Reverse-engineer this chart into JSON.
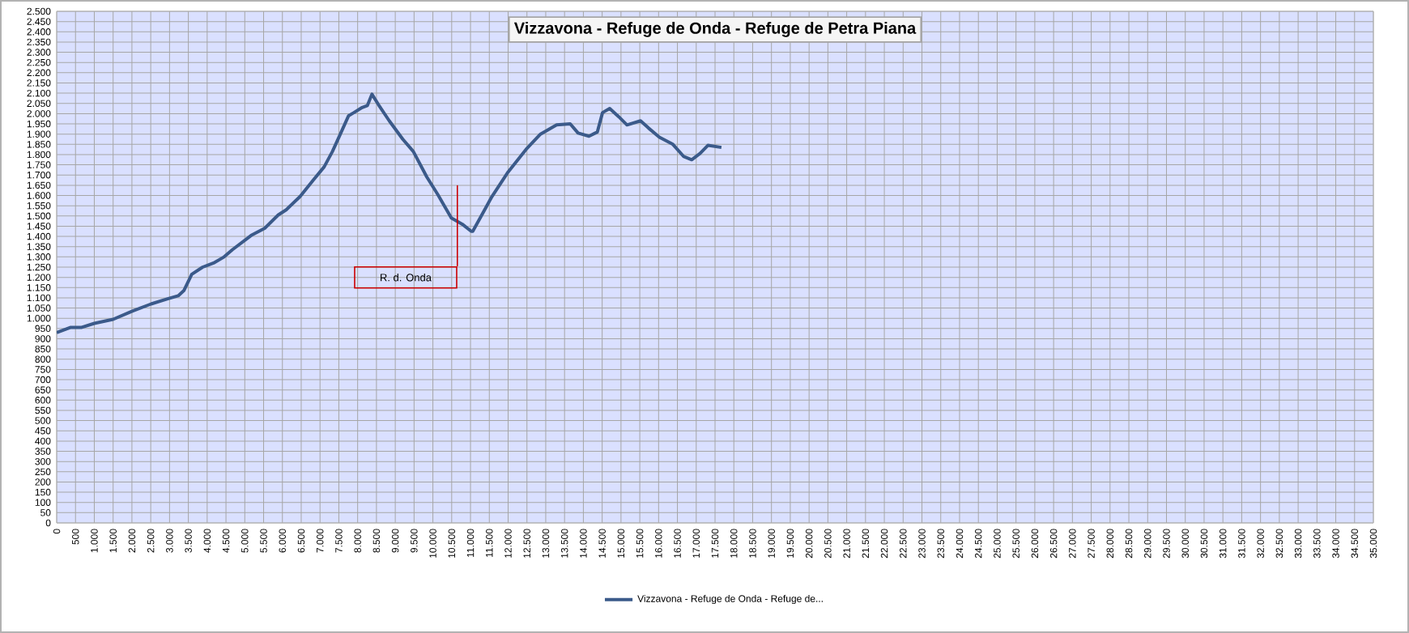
{
  "chart_data": {
    "type": "line",
    "title": "Vizzavona - Refuge de Onda - Refuge de Petra Piana",
    "series": [
      {
        "name": "Vizzavona - Refuge de Onda - Refuge de...",
        "color": "#3b5a8a",
        "x": [
          0,
          360,
          650,
          1000,
          1500,
          2010,
          2510,
          2950,
          3230,
          3380,
          3590,
          3880,
          4170,
          4450,
          4670,
          5170,
          5530,
          5890,
          6100,
          6470,
          6820,
          7110,
          7330,
          7540,
          7760,
          7900,
          8120,
          8260,
          8380,
          8550,
          8840,
          9200,
          9480,
          9840,
          10130,
          10490,
          10780,
          11020,
          11060,
          11420,
          11570,
          12000,
          12500,
          12860,
          13290,
          13650,
          13860,
          14150,
          14370,
          14510,
          14700,
          14940,
          15160,
          15520,
          15730,
          16020,
          16380,
          16670,
          16880,
          17100,
          17310,
          17670
        ],
        "values": [
          930,
          955,
          955,
          975,
          995,
          1035,
          1070,
          1095,
          1110,
          1135,
          1215,
          1250,
          1270,
          1300,
          1335,
          1405,
          1440,
          1505,
          1530,
          1595,
          1675,
          1740,
          1815,
          1900,
          1990,
          2005,
          2030,
          2040,
          2095,
          2045,
          1965,
          1875,
          1815,
          1690,
          1605,
          1490,
          1460,
          1425,
          1425,
          1545,
          1595,
          1715,
          1830,
          1900,
          1945,
          1950,
          1905,
          1890,
          1910,
          2005,
          2025,
          1985,
          1945,
          1965,
          1930,
          1885,
          1850,
          1790,
          1775,
          1805,
          1845,
          1835
        ]
      }
    ],
    "xlim": [
      0,
      35000
    ],
    "ylim": [
      0,
      2500
    ],
    "xticks": [
      0,
      500,
      {
        "value": 1000,
        "label": "1.000"
      },
      {
        "value": 1500,
        "label": "1.500"
      },
      {
        "value": 2000,
        "label": "2.000"
      },
      {
        "value": 2500,
        "label": "2.500"
      },
      {
        "value": 3000,
        "label": "3.000"
      },
      {
        "value": 3500,
        "label": "3.500"
      },
      {
        "value": 4000,
        "label": "4.000"
      },
      {
        "value": 4500,
        "label": "4.500"
      },
      {
        "value": 5000,
        "label": "5.000"
      },
      {
        "value": 5500,
        "label": "5.500"
      },
      {
        "value": 6000,
        "label": "6.000"
      },
      {
        "value": 6500,
        "label": "6.500"
      },
      {
        "value": 7000,
        "label": "7.000"
      },
      {
        "value": 7500,
        "label": "7.500"
      },
      {
        "value": 8000,
        "label": "8.000"
      },
      {
        "value": 8500,
        "label": "8.500"
      },
      {
        "value": 9000,
        "label": "9.000"
      },
      {
        "value": 9500,
        "label": "9.500"
      },
      {
        "value": 10000,
        "label": "10.000"
      },
      {
        "value": 10500,
        "label": "10.500"
      },
      {
        "value": 11000,
        "label": "11.000"
      },
      {
        "value": 11500,
        "label": "11.500"
      },
      {
        "value": 12000,
        "label": "12.000"
      },
      {
        "value": 12500,
        "label": "12.500"
      },
      {
        "value": 13000,
        "label": "13.000"
      },
      {
        "value": 13500,
        "label": "13.500"
      },
      {
        "value": 14000,
        "label": "14.000"
      },
      {
        "value": 14500,
        "label": "14.500"
      },
      {
        "value": 15000,
        "label": "15.000"
      },
      {
        "value": 15500,
        "label": "15.500"
      },
      {
        "value": 16000,
        "label": "16.000"
      },
      {
        "value": 16500,
        "label": "16.500"
      },
      {
        "value": 17000,
        "label": "17.000"
      },
      {
        "value": 17500,
        "label": "17.500"
      },
      {
        "value": 18000,
        "label": "18.000"
      },
      {
        "value": 18500,
        "label": "18.500"
      },
      {
        "value": 19000,
        "label": "19.000"
      },
      {
        "value": 19500,
        "label": "19.500"
      },
      {
        "value": 20000,
        "label": "20.000"
      },
      {
        "value": 20500,
        "label": "20.500"
      },
      {
        "value": 21000,
        "label": "21.000"
      },
      {
        "value": 21500,
        "label": "21.500"
      },
      {
        "value": 22000,
        "label": "22.000"
      },
      {
        "value": 22500,
        "label": "22.500"
      },
      {
        "value": 23000,
        "label": "23.000"
      },
      {
        "value": 23500,
        "label": "23.500"
      },
      {
        "value": 24000,
        "label": "24.000"
      },
      {
        "value": 24500,
        "label": "24.500"
      },
      {
        "value": 25000,
        "label": "25.000"
      },
      {
        "value": 25500,
        "label": "25.500"
      },
      {
        "value": 26000,
        "label": "26.000"
      },
      {
        "value": 26500,
        "label": "26.500"
      },
      {
        "value": 27000,
        "label": "27.000"
      },
      {
        "value": 27500,
        "label": "27.500"
      },
      {
        "value": 28000,
        "label": "28.000"
      },
      {
        "value": 28500,
        "label": "28.500"
      },
      {
        "value": 29000,
        "label": "29.000"
      },
      {
        "value": 29500,
        "label": "29.500"
      },
      {
        "value": 30000,
        "label": "30.000"
      },
      {
        "value": 30500,
        "label": "30.500"
      },
      {
        "value": 31000,
        "label": "31.000"
      },
      {
        "value": 31500,
        "label": "31.500"
      },
      {
        "value": 32000,
        "label": "32.000"
      },
      {
        "value": 32500,
        "label": "32.500"
      },
      {
        "value": 33000,
        "label": "33.000"
      },
      {
        "value": 33500,
        "label": "33.500"
      },
      {
        "value": 34000,
        "label": "34.000"
      },
      {
        "value": 34500,
        "label": "34.500"
      },
      {
        "value": 35000,
        "label": "35.000"
      }
    ],
    "yticks": [
      0,
      50,
      100,
      150,
      200,
      250,
      300,
      350,
      400,
      450,
      500,
      550,
      600,
      650,
      700,
      750,
      800,
      850,
      900,
      950,
      {
        "value": 1000,
        "label": "1.000"
      },
      {
        "value": 1050,
        "label": "1.050"
      },
      {
        "value": 1100,
        "label": "1.100"
      },
      {
        "value": 1150,
        "label": "1.150"
      },
      {
        "value": 1200,
        "label": "1.200"
      },
      {
        "value": 1250,
        "label": "1.250"
      },
      {
        "value": 1300,
        "label": "1.300"
      },
      {
        "value": 1350,
        "label": "1.350"
      },
      {
        "value": 1400,
        "label": "1.400"
      },
      {
        "value": 1450,
        "label": "1.450"
      },
      {
        "value": 1500,
        "label": "1.500"
      },
      {
        "value": 1550,
        "label": "1.550"
      },
      {
        "value": 1600,
        "label": "1.600"
      },
      {
        "value": 1650,
        "label": "1.650"
      },
      {
        "value": 1700,
        "label": "1.700"
      },
      {
        "value": 1750,
        "label": "1.750"
      },
      {
        "value": 1800,
        "label": "1.800"
      },
      {
        "value": 1850,
        "label": "1.850"
      },
      {
        "value": 1900,
        "label": "1.900"
      },
      {
        "value": 1950,
        "label": "1.950"
      },
      {
        "value": 2000,
        "label": "2.000"
      },
      {
        "value": 2050,
        "label": "2.050"
      },
      {
        "value": 2100,
        "label": "2.100"
      },
      {
        "value": 2150,
        "label": "2.150"
      },
      {
        "value": 2200,
        "label": "2.200"
      },
      {
        "value": 2250,
        "label": "2.250"
      },
      {
        "value": 2300,
        "label": "2.300"
      },
      {
        "value": 2350,
        "label": "2.350"
      },
      {
        "value": 2400,
        "label": "2.400"
      },
      {
        "value": 2450,
        "label": "2.450"
      },
      {
        "value": 2500,
        "label": "2.500"
      }
    ],
    "ref_lines": [
      {
        "axis": "x",
        "value": 10650,
        "label": "R. d. Onda",
        "color": "#cc0000"
      }
    ],
    "grid": true,
    "legend": "bottom",
    "marker": "none",
    "line_style": "solid"
  }
}
